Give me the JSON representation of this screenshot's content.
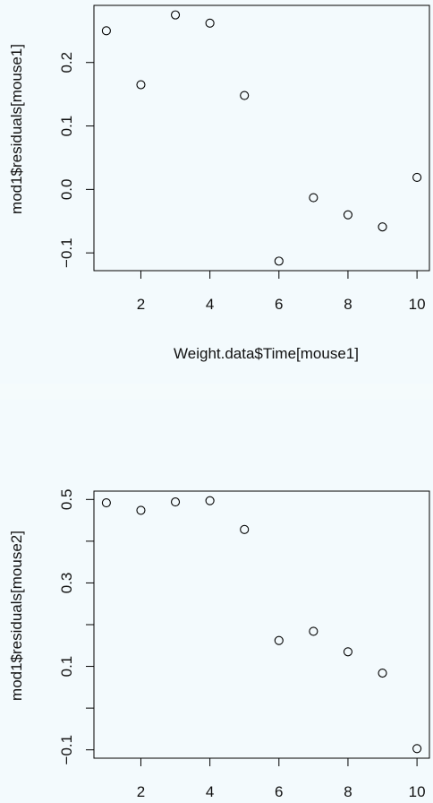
{
  "chart_data": [
    {
      "type": "scatter",
      "title": "",
      "xlabel": "Weight.data$Time[mouse1]",
      "ylabel": "mod1$residuals[mouse1]",
      "x": [
        1,
        2,
        3,
        4,
        5,
        6,
        7,
        8,
        9,
        10
      ],
      "y": [
        0.25,
        0.165,
        0.275,
        0.262,
        0.148,
        -0.113,
        -0.013,
        -0.04,
        -0.059,
        0.019
      ],
      "xlim": [
        0.64,
        10.36
      ],
      "ylim": [
        -0.128,
        0.29
      ],
      "xticks": [
        2,
        4,
        6,
        8,
        10
      ],
      "yticks": [
        -0.1,
        0.0,
        0.1,
        0.2
      ],
      "xtick_labels": [
        "2",
        "4",
        "6",
        "8",
        "10"
      ],
      "ytick_labels": [
        "−0.1",
        "0.0",
        "0.1",
        "0.2"
      ],
      "grid": false,
      "marker": "open-circle"
    },
    {
      "type": "scatter",
      "title": "",
      "xlabel": "",
      "ylabel": "mod1$residuals[mouse2]",
      "x": [
        1,
        2,
        3,
        4,
        5,
        6,
        7,
        8,
        9,
        10
      ],
      "y": [
        0.492,
        0.474,
        0.494,
        0.497,
        0.428,
        0.162,
        0.184,
        0.135,
        0.084,
        -0.097
      ],
      "xlim": [
        0.64,
        10.36
      ],
      "ylim": [
        -0.12,
        0.52
      ],
      "xticks": [
        2,
        4,
        6,
        8,
        10
      ],
      "yticks": [
        -0.1,
        0.0,
        0.1,
        0.2,
        0.3,
        0.4,
        0.5
      ],
      "xtick_labels": [
        "2",
        "4",
        "6",
        "8",
        "10"
      ],
      "ytick_labels": [
        "−0.1",
        "",
        "0.1",
        "",
        "0.3",
        "",
        "0.5"
      ],
      "grid": false,
      "marker": "open-circle"
    }
  ]
}
